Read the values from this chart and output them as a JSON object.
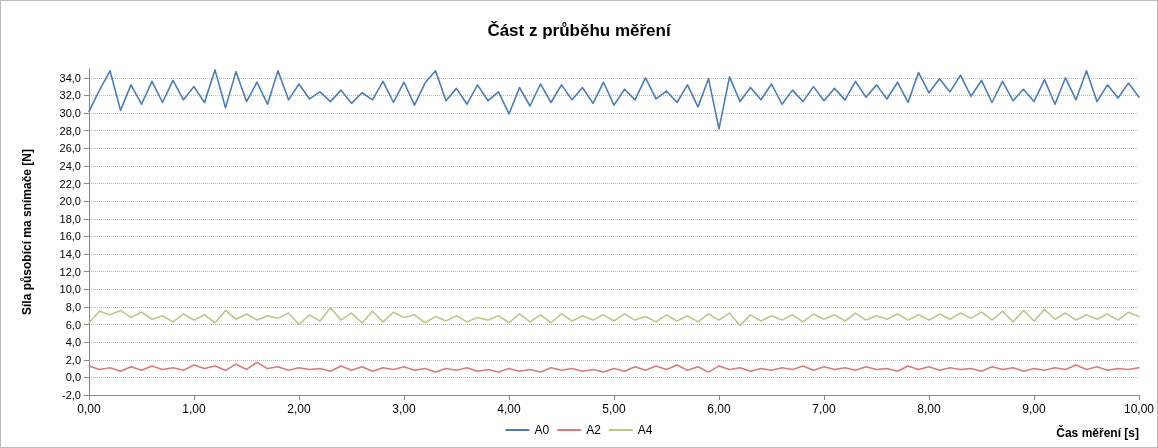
{
  "chart_data": {
    "type": "line",
    "title": "Část z průběhu měření",
    "xlabel": "Čas měření [s]",
    "ylabel": "Síla působící ma snímače [N]",
    "x": [
      0,
      0.1,
      0.2,
      0.3,
      0.4,
      0.5,
      0.6,
      0.7,
      0.8,
      0.9,
      1,
      1.1,
      1.2,
      1.3,
      1.4,
      1.5,
      1.6,
      1.7,
      1.8,
      1.9,
      2,
      2.1,
      2.2,
      2.3,
      2.4,
      2.5,
      2.6,
      2.7,
      2.8,
      2.9,
      3,
      3.1,
      3.2,
      3.3,
      3.4,
      3.5,
      3.6,
      3.7,
      3.8,
      3.9,
      4,
      4.1,
      4.2,
      4.3,
      4.4,
      4.5,
      4.6,
      4.7,
      4.8,
      4.9,
      5,
      5.1,
      5.2,
      5.3,
      5.4,
      5.5,
      5.6,
      5.7,
      5.8,
      5.9,
      6,
      6.1,
      6.2,
      6.3,
      6.4,
      6.5,
      6.6,
      6.7,
      6.8,
      6.9,
      7,
      7.1,
      7.2,
      7.3,
      7.4,
      7.5,
      7.6,
      7.7,
      7.8,
      7.9,
      8,
      8.1,
      8.2,
      8.3,
      8.4,
      8.5,
      8.6,
      8.7,
      8.8,
      8.9,
      9,
      9.1,
      9.2,
      9.3,
      9.4,
      9.5,
      9.6,
      9.7,
      9.8,
      9.9,
      10
    ],
    "series": [
      {
        "name": "A0",
        "color": "#4a7ebb",
        "values": [
          30.2,
          32.6,
          34.8,
          30.3,
          33.2,
          31.0,
          33.6,
          31.2,
          33.7,
          31.5,
          33.0,
          31.2,
          34.9,
          30.6,
          34.7,
          31.3,
          33.5,
          31.0,
          34.8,
          31.5,
          33.3,
          31.6,
          32.4,
          31.3,
          32.6,
          31.1,
          32.3,
          31.5,
          33.6,
          31.2,
          33.5,
          30.9,
          33.4,
          34.8,
          31.4,
          32.8,
          31.0,
          33.2,
          31.4,
          32.4,
          29.9,
          32.9,
          30.8,
          33.3,
          31.2,
          33.2,
          31.5,
          32.9,
          31.1,
          33.5,
          30.9,
          32.7,
          31.5,
          34.0,
          31.6,
          32.5,
          31.2,
          33.2,
          30.7,
          33.9,
          28.2,
          34.1,
          31.3,
          32.9,
          31.5,
          33.3,
          31.0,
          32.6,
          31.3,
          33.0,
          31.4,
          32.8,
          31.5,
          33.6,
          31.8,
          33.2,
          31.6,
          33.5,
          31.2,
          34.6,
          32.3,
          33.9,
          32.4,
          34.3,
          31.9,
          33.7,
          31.2,
          33.6,
          31.4,
          32.7,
          31.3,
          33.8,
          31.0,
          34.0,
          31.5,
          34.8,
          31.3,
          33.2,
          31.7,
          33.4,
          31.8
        ]
      },
      {
        "name": "A2",
        "color": "#d97b7b",
        "values": [
          1.3,
          0.9,
          1.1,
          0.7,
          1.2,
          0.8,
          1.3,
          0.9,
          1.1,
          0.8,
          1.4,
          1.0,
          1.3,
          0.8,
          1.5,
          0.9,
          1.7,
          1.0,
          1.2,
          0.8,
          1.1,
          0.9,
          1.0,
          0.7,
          1.3,
          0.8,
          1.2,
          0.7,
          1.1,
          0.9,
          1.2,
          0.8,
          1.0,
          0.6,
          1.0,
          0.8,
          1.1,
          0.7,
          0.9,
          0.6,
          1.0,
          0.7,
          0.9,
          0.6,
          1.1,
          0.8,
          1.0,
          0.7,
          0.9,
          0.6,
          1.0,
          0.7,
          1.2,
          0.8,
          1.3,
          0.9,
          1.4,
          0.8,
          1.2,
          0.6,
          1.3,
          0.9,
          1.1,
          0.7,
          1.0,
          0.8,
          1.1,
          0.9,
          1.3,
          0.8,
          1.2,
          0.9,
          1.1,
          0.8,
          1.2,
          0.9,
          1.0,
          0.7,
          1.3,
          0.9,
          1.2,
          0.8,
          1.1,
          0.9,
          1.0,
          0.7,
          1.2,
          0.9,
          1.1,
          0.7,
          1.0,
          0.8,
          1.1,
          0.9,
          1.4,
          0.9,
          1.2,
          0.8,
          1.0,
          0.9,
          1.1
        ]
      },
      {
        "name": "A4",
        "color": "#b5cc85",
        "values": [
          6.2,
          7.5,
          7.1,
          7.6,
          6.8,
          7.4,
          6.6,
          7.0,
          6.3,
          7.2,
          6.5,
          7.1,
          6.2,
          7.6,
          6.6,
          7.2,
          6.5,
          7.0,
          6.7,
          7.3,
          6.0,
          7.1,
          6.4,
          7.9,
          6.5,
          7.3,
          6.2,
          7.5,
          6.3,
          7.4,
          6.8,
          7.1,
          6.2,
          6.9,
          6.4,
          7.0,
          6.3,
          6.8,
          6.5,
          7.0,
          6.2,
          7.2,
          6.3,
          7.1,
          6.2,
          7.2,
          6.4,
          7.0,
          6.5,
          7.1,
          6.4,
          7.2,
          6.5,
          6.9,
          6.3,
          7.1,
          6.4,
          7.0,
          6.3,
          7.2,
          6.5,
          7.3,
          5.9,
          7.1,
          6.4,
          7.0,
          6.5,
          7.1,
          6.3,
          7.2,
          6.6,
          7.1,
          6.4,
          7.3,
          6.5,
          7.0,
          6.6,
          7.2,
          6.5,
          7.1,
          6.5,
          7.2,
          6.6,
          7.3,
          6.7,
          7.4,
          6.5,
          7.5,
          6.3,
          7.6,
          6.4,
          7.7,
          6.6,
          7.3,
          6.5,
          7.1,
          6.6,
          7.2,
          6.5,
          7.4,
          6.9
        ]
      }
    ],
    "xlim": [
      0,
      10
    ],
    "xticks": [
      {
        "value": 0,
        "label": "0,00"
      },
      {
        "value": 1,
        "label": "1,00"
      },
      {
        "value": 2,
        "label": "2,00"
      },
      {
        "value": 3,
        "label": "3,00"
      },
      {
        "value": 4,
        "label": "4,00"
      },
      {
        "value": 5,
        "label": "5,00"
      },
      {
        "value": 6,
        "label": "6,00"
      },
      {
        "value": 7,
        "label": "7,00"
      },
      {
        "value": 8,
        "label": "8,00"
      },
      {
        "value": 9,
        "label": "9,00"
      },
      {
        "value": 10,
        "label": "10,00"
      }
    ],
    "ylim": [
      -2,
      35
    ],
    "yticks": [
      {
        "value": -2,
        "label": "-2,0"
      },
      {
        "value": 0,
        "label": "0,0"
      },
      {
        "value": 2,
        "label": "2,0"
      },
      {
        "value": 4,
        "label": "4,0"
      },
      {
        "value": 6,
        "label": "6,0"
      },
      {
        "value": 8,
        "label": "8,0"
      },
      {
        "value": 10,
        "label": "10,0"
      },
      {
        "value": 12,
        "label": "12,0"
      },
      {
        "value": 14,
        "label": "14,0"
      },
      {
        "value": 16,
        "label": "16,0"
      },
      {
        "value": 18,
        "label": "18,0"
      },
      {
        "value": 20,
        "label": "20,0"
      },
      {
        "value": 22,
        "label": "22,0"
      },
      {
        "value": 24,
        "label": "24,0"
      },
      {
        "value": 26,
        "label": "26,0"
      },
      {
        "value": 28,
        "label": "28,0"
      },
      {
        "value": 30,
        "label": "30,0"
      },
      {
        "value": 32,
        "label": "32,0"
      },
      {
        "value": 34,
        "label": "34,0"
      }
    ],
    "grid": "y",
    "legend": "bottom",
    "marker": "none"
  }
}
